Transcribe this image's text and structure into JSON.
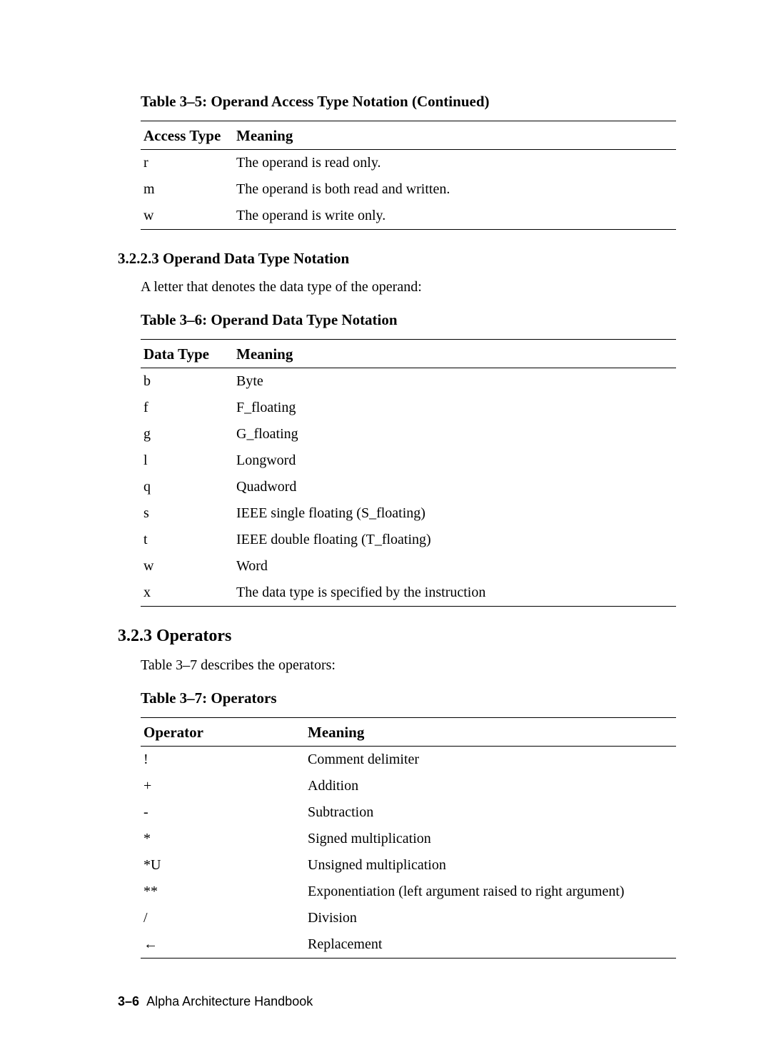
{
  "table35": {
    "caption": "Table 3–5:  Operand Access Type Notation (Continued)",
    "columns": [
      "Access Type",
      "Meaning"
    ],
    "rows": [
      [
        "r",
        "The operand is read only."
      ],
      [
        "m",
        "The operand is both read and written."
      ],
      [
        "w",
        "The operand is write only."
      ]
    ]
  },
  "section3223": {
    "number": "3.2.2.3",
    "title": "Operand Data Type Notation",
    "intro": "A letter that denotes the data type of the operand:"
  },
  "table36": {
    "caption": "Table 3–6:  Operand Data Type Notation",
    "columns": [
      "Data Type",
      "Meaning"
    ],
    "rows": [
      [
        "b",
        "Byte"
      ],
      [
        "f",
        "F_floating"
      ],
      [
        "g",
        "G_floating"
      ],
      [
        "l",
        "Longword"
      ],
      [
        "q",
        "Quadword"
      ],
      [
        "s",
        "IEEE single floating (S_floating)"
      ],
      [
        "t",
        "IEEE double floating (T_floating)"
      ],
      [
        "w",
        "Word"
      ],
      [
        "x",
        "The data type is specified by the instruction"
      ]
    ]
  },
  "section323": {
    "number": "3.2.3",
    "title": "Operators",
    "intro": "Table 3–7 describes the operators:"
  },
  "table37": {
    "caption": "Table 3–7:  Operators",
    "columns": [
      "Operator",
      "Meaning"
    ],
    "rows": [
      [
        "!",
        "Comment delimiter"
      ],
      [
        "+",
        "Addition"
      ],
      [
        "-",
        "Subtraction"
      ],
      [
        "*",
        "Signed multiplication"
      ],
      [
        "*U",
        "Unsigned multiplication"
      ],
      [
        "**",
        "Exponentiation (left argument raised to right argument)"
      ],
      [
        "/",
        "Division"
      ],
      [
        "←",
        "Replacement"
      ]
    ]
  },
  "footer": {
    "page_num": "3–6",
    "book": "Alpha Architecture Handbook"
  }
}
